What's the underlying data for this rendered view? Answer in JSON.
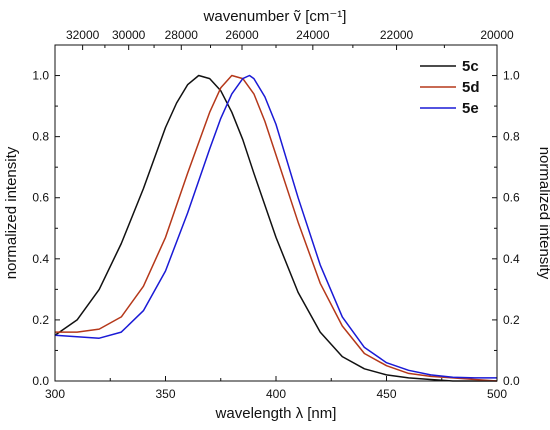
{
  "chart_data": {
    "type": "line",
    "xlabel": "wavelength λ [nm]",
    "ylabel_left": "normalized intensity",
    "ylabel_right": "normalized intensity",
    "top_axis_label": "wavenumber ṽ [cm⁻¹]",
    "xlim": [
      300,
      500
    ],
    "ylim": [
      0.0,
      1.1
    ],
    "grid": false,
    "legend_position": "top-right",
    "x_ticks": [
      300,
      350,
      400,
      450,
      500
    ],
    "y_ticks": [
      0.0,
      0.2,
      0.4,
      0.6,
      0.8,
      1.0
    ],
    "x_tick_labels": [
      "300",
      "350",
      "400",
      "450",
      "500"
    ],
    "y_tick_labels": [
      "0.0",
      "0.2",
      "0.4",
      "0.6",
      "0.8",
      "1.0"
    ],
    "top_ticks": [
      32000,
      30000,
      28000,
      26000,
      24000,
      22000,
      20000
    ],
    "top_tick_labels": [
      "32000",
      "30000",
      "28000",
      "26000",
      "24000",
      "22000",
      "20000"
    ],
    "series": [
      {
        "name": "5c",
        "color": "#111111",
        "x": [
          300,
          310,
          320,
          330,
          340,
          350,
          355,
          360,
          365,
          370,
          375,
          380,
          385,
          390,
          400,
          410,
          420,
          430,
          440,
          450,
          460,
          470,
          480,
          490,
          500
        ],
        "y": [
          0.15,
          0.2,
          0.3,
          0.45,
          0.63,
          0.83,
          0.91,
          0.97,
          1.0,
          0.99,
          0.95,
          0.88,
          0.79,
          0.68,
          0.47,
          0.29,
          0.16,
          0.08,
          0.04,
          0.02,
          0.01,
          0.005,
          0.0,
          0.0,
          0.0
        ]
      },
      {
        "name": "5d",
        "color": "#b5381a",
        "x": [
          300,
          310,
          320,
          330,
          340,
          350,
          360,
          370,
          375,
          380,
          385,
          390,
          395,
          400,
          410,
          420,
          430,
          440,
          450,
          460,
          470,
          480,
          490,
          500
        ],
        "y": [
          0.16,
          0.16,
          0.17,
          0.21,
          0.31,
          0.47,
          0.68,
          0.88,
          0.96,
          1.0,
          0.99,
          0.94,
          0.85,
          0.74,
          0.52,
          0.32,
          0.18,
          0.09,
          0.05,
          0.025,
          0.015,
          0.01,
          0.005,
          0.0
        ]
      },
      {
        "name": "5e",
        "color": "#1a1ad6",
        "x": [
          300,
          310,
          320,
          330,
          340,
          350,
          360,
          370,
          375,
          380,
          385,
          388,
          390,
          395,
          400,
          410,
          420,
          430,
          440,
          450,
          460,
          470,
          480,
          490,
          500
        ],
        "y": [
          0.15,
          0.145,
          0.14,
          0.16,
          0.23,
          0.36,
          0.55,
          0.76,
          0.86,
          0.94,
          0.99,
          1.0,
          0.99,
          0.93,
          0.84,
          0.6,
          0.38,
          0.21,
          0.11,
          0.06,
          0.035,
          0.02,
          0.012,
          0.01,
          0.01
        ]
      }
    ]
  }
}
